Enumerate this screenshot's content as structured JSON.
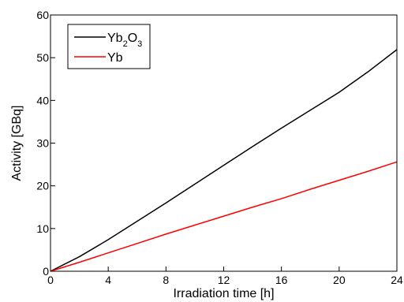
{
  "chart_data": {
    "type": "line",
    "title": "",
    "xlabel": "Irradiation time [h]",
    "ylabel": "Activity [GBq]",
    "xlim": [
      0,
      24
    ],
    "ylim": [
      0,
      60
    ],
    "x_ticks": [
      0,
      4,
      8,
      12,
      16,
      20,
      24
    ],
    "x_tick_labels": [
      "0",
      "4",
      "8",
      "12",
      "16",
      "20",
      "24"
    ],
    "y_ticks": [
      0,
      10,
      20,
      30,
      40,
      50,
      60
    ],
    "y_tick_labels": [
      "0",
      "10",
      "20",
      "30",
      "40",
      "50",
      "60"
    ],
    "grid": false,
    "legend_position": "top-left",
    "x": [
      0,
      2,
      4,
      6,
      8,
      10,
      12,
      14,
      16,
      18,
      20,
      22,
      24
    ],
    "series": [
      {
        "name": "Yb2O3",
        "name_parts": [
          {
            "text": "Yb",
            "sub": false
          },
          {
            "text": "2",
            "sub": true
          },
          {
            "text": "O",
            "sub": false
          },
          {
            "text": "3",
            "sub": true
          }
        ],
        "color": "#000000",
        "values": [
          0,
          3.4,
          7.4,
          11.7,
          16.0,
          20.4,
          24.8,
          29.2,
          33.5,
          37.7,
          41.9,
          46.7,
          51.9
        ]
      },
      {
        "name": "Yb",
        "color": "#ff0000",
        "values": [
          0,
          2.1,
          4.3,
          6.5,
          8.7,
          10.8,
          12.9,
          15.0,
          17.0,
          19.2,
          21.3,
          23.4,
          25.6
        ]
      }
    ]
  }
}
